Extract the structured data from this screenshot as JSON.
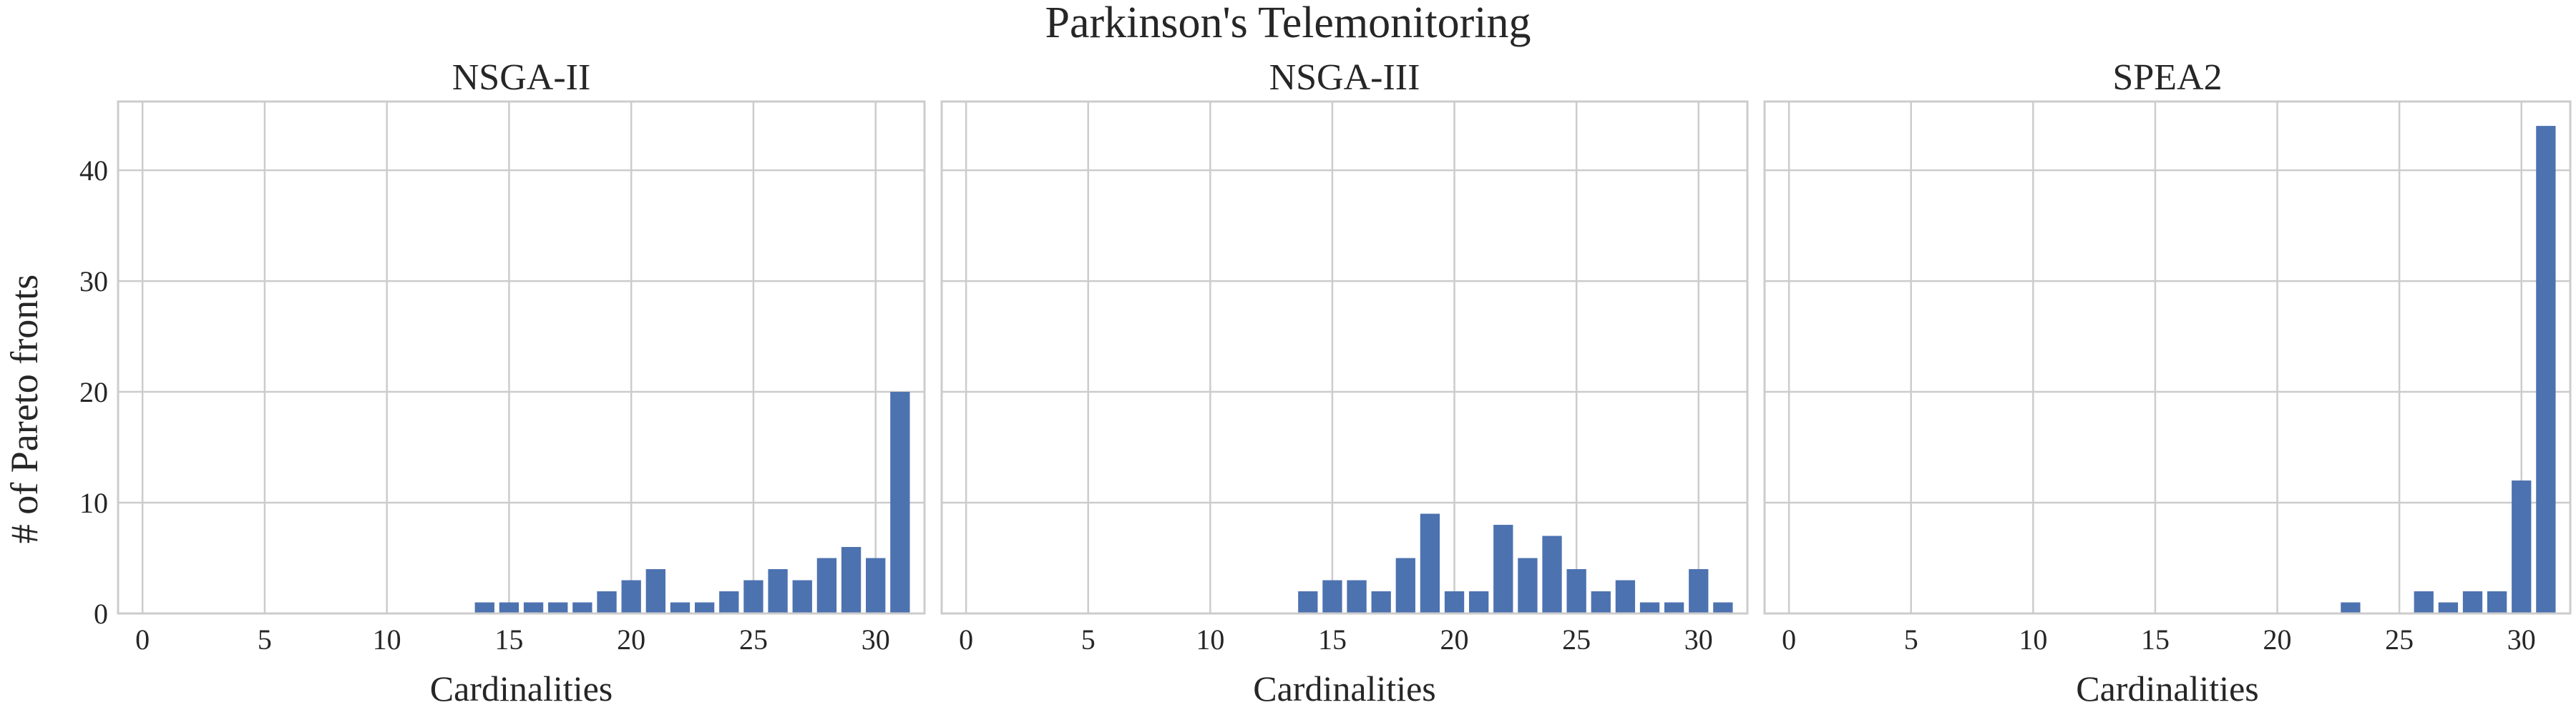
{
  "suptitle": "Parkinson's Telemonitoring",
  "ylabel": "# of Pareto fronts",
  "colors": {
    "bar": "#4c72b0",
    "grid": "#cccccc",
    "spine": "#cccccc"
  },
  "chart_data": [
    {
      "type": "bar",
      "title": "NSGA-II",
      "xlabel": "Cardinalities",
      "ylabel": "# of Pareto fronts",
      "xlim": [
        -1,
        32
      ],
      "ylim": [
        0,
        46.2
      ],
      "xticks": [
        0,
        5,
        10,
        15,
        20,
        25,
        30
      ],
      "yticks": [
        0,
        10,
        20,
        30,
        40
      ],
      "grid": true,
      "x": [
        14,
        15,
        16,
        17,
        18,
        19,
        20,
        21,
        22,
        23,
        24,
        25,
        26,
        27,
        28,
        29,
        30,
        31
      ],
      "values": [
        1,
        1,
        1,
        1,
        1,
        2,
        3,
        4,
        1,
        1,
        2,
        3,
        4,
        3,
        5,
        6,
        5,
        20
      ]
    },
    {
      "type": "bar",
      "title": "NSGA-III",
      "xlabel": "Cardinalities",
      "xlim": [
        -1,
        32
      ],
      "ylim": [
        0,
        46.2
      ],
      "xticks": [
        0,
        5,
        10,
        15,
        20,
        25,
        30
      ],
      "grid": true,
      "x": [
        14,
        15,
        16,
        17,
        18,
        19,
        20,
        21,
        22,
        23,
        24,
        25,
        26,
        27,
        28,
        29,
        30,
        31
      ],
      "values": [
        2,
        3,
        3,
        2,
        5,
        9,
        2,
        2,
        8,
        5,
        7,
        4,
        2,
        3,
        1,
        1,
        4,
        1
      ]
    },
    {
      "type": "bar",
      "title": "SPEA2",
      "xlabel": "Cardinalities",
      "xlim": [
        -1,
        32
      ],
      "ylim": [
        0,
        46.2
      ],
      "xticks": [
        0,
        5,
        10,
        15,
        20,
        25,
        30
      ],
      "grid": true,
      "x": [
        23,
        26,
        27,
        28,
        29,
        30,
        31
      ],
      "values": [
        1,
        2,
        1,
        2,
        2,
        12,
        44
      ]
    }
  ]
}
